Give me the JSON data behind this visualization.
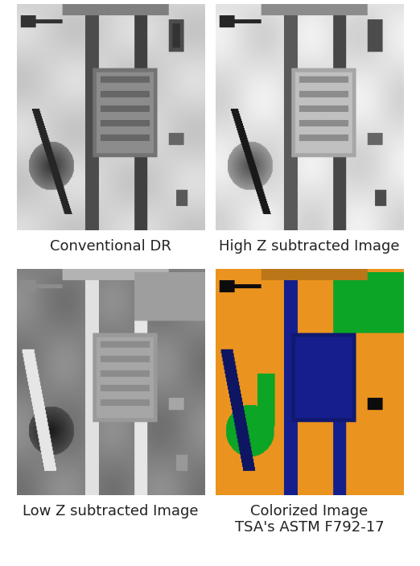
{
  "title": "",
  "labels": [
    "Conventional DR",
    "High Z subtracted Image",
    "Low Z subtracted Image",
    "Colorized Image\nTSA's ASTM F792-17"
  ],
  "bg_color": "#ffffff",
  "label_fontsize": 13,
  "fig_width": 5.22,
  "fig_height": 7.03,
  "label_color": "#222222",
  "gap_color": "#ffffff"
}
